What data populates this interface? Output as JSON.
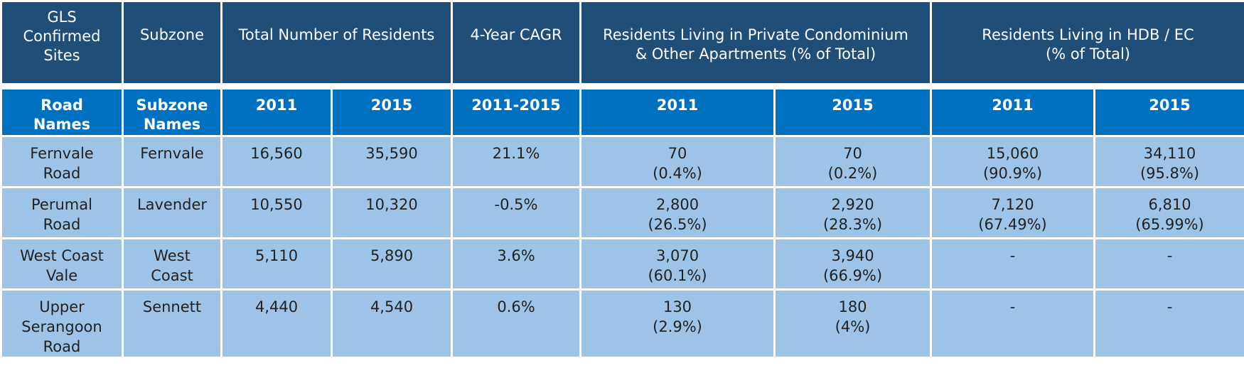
{
  "table": {
    "header_top": {
      "gls_sites": [
        "GLS",
        "Confirmed",
        "Sites"
      ],
      "subzone": "Subzone",
      "total_residents": "Total Number of Residents",
      "cagr": "4-Year CAGR",
      "private": [
        "Residents Living in Private Condominium",
        "& Other Apartments (% of Total)"
      ],
      "hdb": [
        "Residents Living in HDB / EC",
        "(% of Total)"
      ]
    },
    "header_sub": {
      "road_names": [
        "Road",
        "Names"
      ],
      "subzone_names": [
        "Subzone",
        "Names"
      ],
      "total_2011": "2011",
      "total_2015": "2015",
      "cagr_range": "2011-2015",
      "private_2011": "2011",
      "private_2015": "2015",
      "hdb_2011": "2011",
      "hdb_2015": "2015"
    },
    "rows": [
      {
        "road": [
          "Fernvale",
          "Road"
        ],
        "subzone": [
          "Fernvale"
        ],
        "total_2011": "16,560",
        "total_2015": "35,590",
        "cagr": "21.1%",
        "private_2011": [
          "70",
          "(0.4%)"
        ],
        "private_2015": [
          "70",
          "(0.2%)"
        ],
        "hdb_2011": [
          "15,060",
          "(90.9%)"
        ],
        "hdb_2015": [
          "34,110",
          "(95.8%)"
        ]
      },
      {
        "road": [
          "Perumal",
          "Road"
        ],
        "subzone": [
          "Lavender"
        ],
        "total_2011": "10,550",
        "total_2015": "10,320",
        "cagr": "-0.5%",
        "private_2011": [
          "2,800",
          "(26.5%)"
        ],
        "private_2015": [
          "2,920",
          "(28.3%)"
        ],
        "hdb_2011": [
          "7,120",
          "(67.49%)"
        ],
        "hdb_2015": [
          "6,810",
          "(65.99%)"
        ]
      },
      {
        "road": [
          "West Coast",
          "Vale"
        ],
        "subzone": [
          "West",
          "Coast"
        ],
        "total_2011": "5,110",
        "total_2015": "5,890",
        "cagr": "3.6%",
        "private_2011": [
          "3,070",
          "(60.1%)"
        ],
        "private_2015": [
          "3,940",
          "(66.9%)"
        ],
        "hdb_2011": [
          "-"
        ],
        "hdb_2015": [
          "-"
        ]
      },
      {
        "road": [
          "Upper",
          "Serangoon",
          "Road"
        ],
        "subzone": [
          "Sennett"
        ],
        "total_2011": "4,440",
        "total_2015": "4,540",
        "cagr": "0.6%",
        "private_2011": [
          "130",
          "(2.9%)"
        ],
        "private_2015": [
          "180",
          "(4%)"
        ],
        "hdb_2011": [
          "-"
        ],
        "hdb_2015": [
          "-"
        ]
      }
    ]
  },
  "colors": {
    "header_top_bg": "#1f4e79",
    "header_sub_bg": "#0070c0",
    "body_bg": "#9dc3e6",
    "border": "#ffffff"
  }
}
